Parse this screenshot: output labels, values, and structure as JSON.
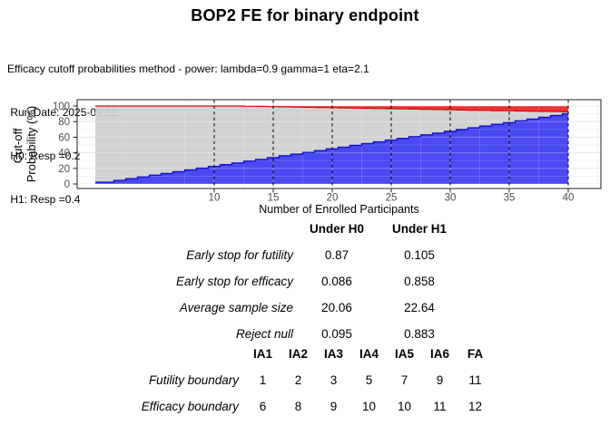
{
  "title": "BOP2 FE for binary endpoint",
  "subtitle_lines": [
    "Efficacy cutoff probabilities method - power: lambda=0.9 gamma=1 eta=2.1",
    " Run Date: 2025-09-11",
    " H0: Resp =0.2",
    " H1: Resp =0.4"
  ],
  "chart_data": {
    "type": "area",
    "title": "",
    "xlabel": "Number of Enrolled Participants",
    "ylabel": "Cut-off Probability (%)",
    "ylabel_lines": [
      "Cut-off",
      "Probability (%)"
    ],
    "xlim": [
      -1.5,
      42.5
    ],
    "ylim": [
      0,
      100
    ],
    "x_ticks": [
      10,
      15,
      20,
      25,
      30,
      35,
      40
    ],
    "y_ticks": [
      0,
      20,
      40,
      60,
      80,
      100
    ],
    "grid": "on",
    "interim_analysis_lines_x": [
      10,
      15,
      20,
      25,
      30,
      35,
      40
    ],
    "x": [
      1,
      2,
      3,
      4,
      5,
      6,
      7,
      8,
      9,
      10,
      11,
      12,
      13,
      14,
      15,
      16,
      17,
      18,
      19,
      20,
      21,
      22,
      23,
      24,
      25,
      26,
      27,
      28,
      29,
      30,
      31,
      32,
      33,
      34,
      35,
      36,
      37,
      38,
      39,
      40
    ],
    "series": [
      {
        "name": "futility-cutoff-probability",
        "color": "#3B3BF2",
        "edge": "#1212CC",
        "values": [
          2.25,
          4.5,
          6.75,
          9,
          11.25,
          13.5,
          15.75,
          18,
          20.25,
          22.5,
          24.75,
          27,
          29.25,
          31.5,
          33.75,
          36,
          38.25,
          40.5,
          42.75,
          45,
          47.25,
          49.5,
          51.75,
          54,
          56.25,
          58.5,
          60.75,
          63,
          65.25,
          67.5,
          69.75,
          72,
          74.25,
          76.5,
          78.75,
          81,
          83.25,
          85.5,
          87.75,
          90
        ]
      },
      {
        "name": "efficacy-cutoff-probability",
        "color": "#EE2121",
        "edge": "#CF1010",
        "values": [
          100,
          100,
          100,
          100,
          100,
          100,
          100,
          100,
          100,
          100,
          100,
          100,
          99.7,
          99.5,
          99.2,
          98.9,
          98.7,
          98.4,
          98.1,
          97.9,
          97.6,
          97.3,
          97.1,
          96.8,
          96.5,
          96.3,
          96,
          95.7,
          95.5,
          95.2,
          94.9,
          94.7,
          94.4,
          94.1,
          93.9,
          93.6,
          93.3,
          93.1,
          92.8,
          92.5
        ]
      },
      {
        "name": "continue-region",
        "color": "#D0D0D0"
      }
    ]
  },
  "summary_table": {
    "col_headers": [
      "Under H0",
      "Under H1"
    ],
    "rows": [
      {
        "label": "Early stop for futility",
        "h0": "0.87",
        "h1": "0.105"
      },
      {
        "label": "Early stop for efficacy",
        "h0": "0.086",
        "h1": "0.858"
      },
      {
        "label": "Average sample size",
        "h0": "20.06",
        "h1": "22.64"
      },
      {
        "label": "Reject null",
        "h0": "0.095",
        "h1": "0.883"
      }
    ]
  },
  "boundary_table": {
    "col_headers": [
      "IA1",
      "IA2",
      "IA3",
      "IA4",
      "IA5",
      "IA6",
      "FA"
    ],
    "rows": [
      {
        "label": "Futility boundary",
        "values": [
          "1",
          "2",
          "3",
          "5",
          "7",
          "9",
          "11"
        ]
      },
      {
        "label": "Efficacy boundary",
        "values": [
          "6",
          "8",
          "9",
          "10",
          "10",
          "11",
          "12"
        ]
      }
    ]
  }
}
